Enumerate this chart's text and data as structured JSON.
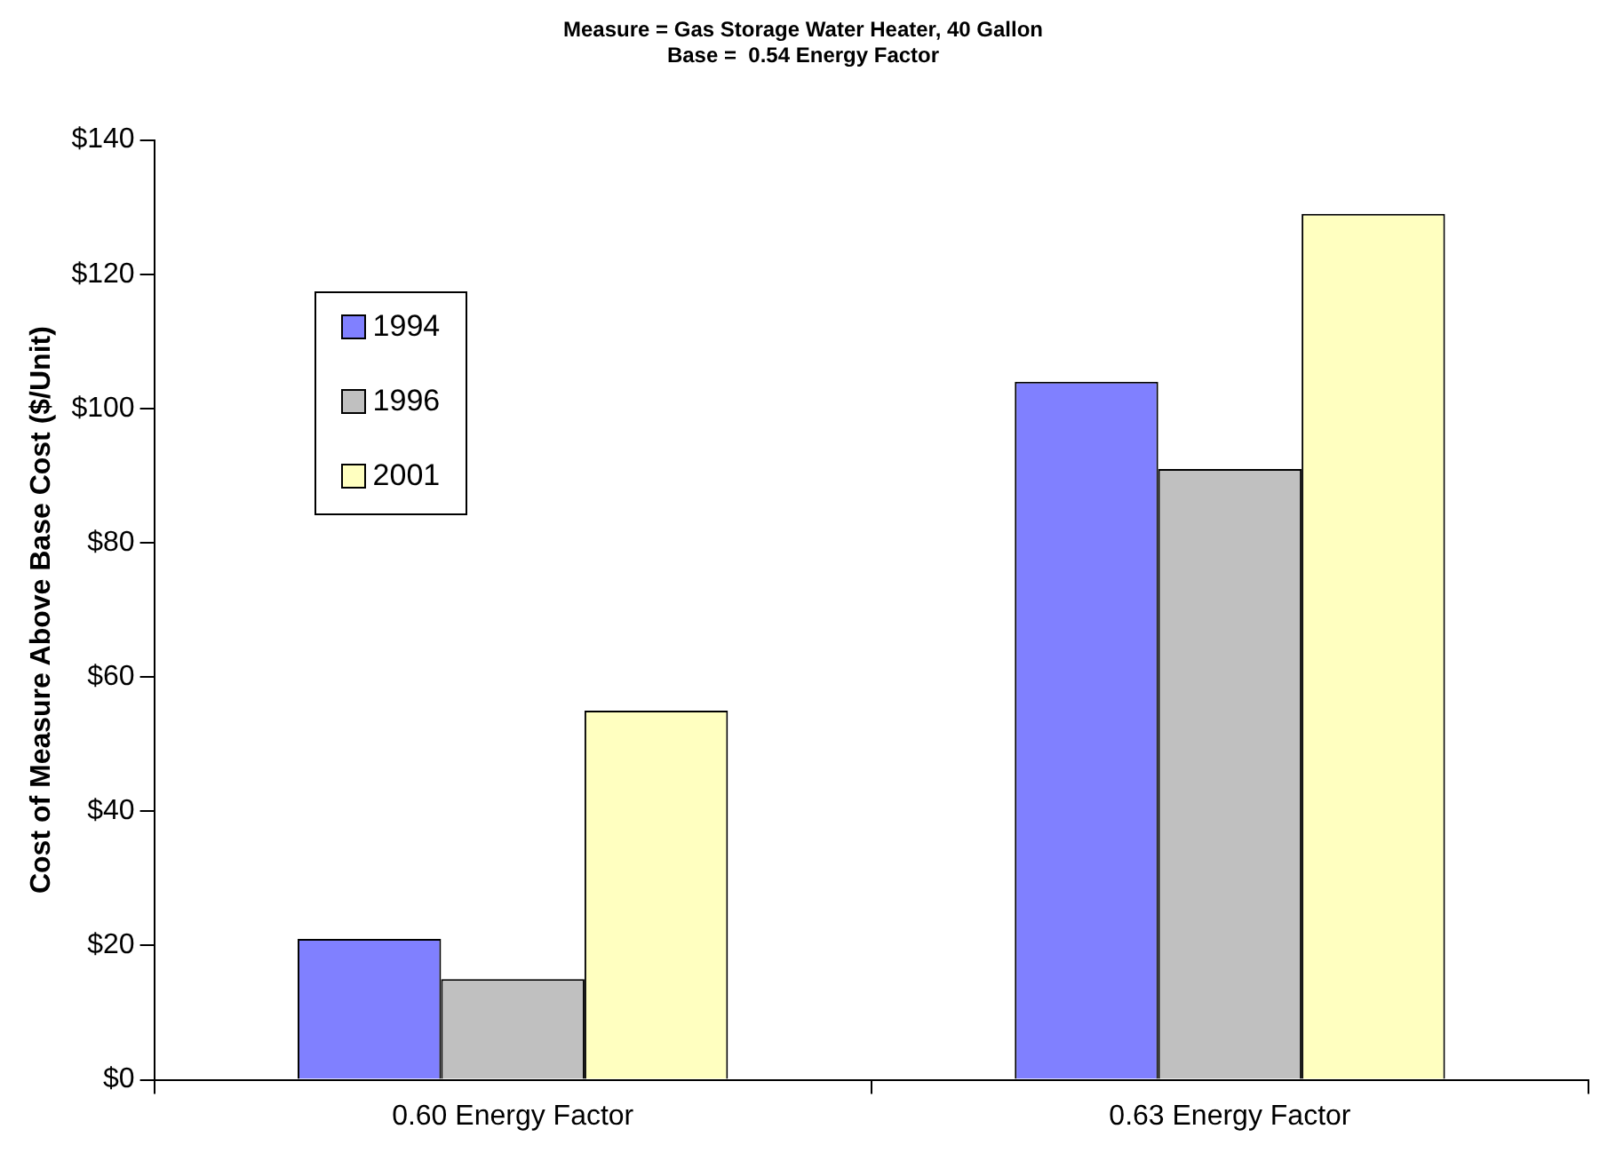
{
  "chart_data": {
    "type": "bar",
    "title": "Measure = Gas Storage Water Heater, 40 Gallon",
    "subtitle": "Base =  0.54 Energy Factor",
    "ylabel": "Cost of Measure Above Base Cost ($/Unit)",
    "categories": [
      "0.60 Energy Factor",
      "0.63 Energy Factor"
    ],
    "series": [
      {
        "name": "1994",
        "color": "#8080ff",
        "values": [
          21,
          104
        ]
      },
      {
        "name": "1996",
        "color": "#c0c0c0",
        "values": [
          15,
          91
        ]
      },
      {
        "name": "2001",
        "color": "#ffffc0",
        "values": [
          55,
          129
        ]
      }
    ],
    "ylim": [
      0,
      140
    ],
    "yticks": [
      {
        "value": 0,
        "label": "$0"
      },
      {
        "value": 20,
        "label": "$20"
      },
      {
        "value": 40,
        "label": "$40"
      },
      {
        "value": 60,
        "label": "$60"
      },
      {
        "value": 80,
        "label": "$80"
      },
      {
        "value": 100,
        "label": "$100"
      },
      {
        "value": 120,
        "label": "$120"
      },
      {
        "value": 140,
        "label": "$140"
      }
    ],
    "grid": false,
    "legend": "top left"
  }
}
